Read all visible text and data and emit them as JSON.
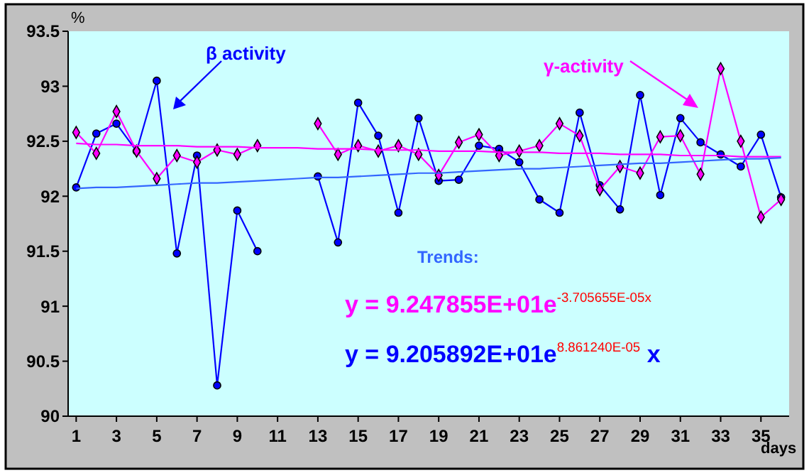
{
  "chart_data": {
    "type": "line",
    "xlabel": "days",
    "ylabel": "%",
    "xlim": [
      0.6,
      36.4
    ],
    "xticks": [
      1,
      3,
      5,
      7,
      9,
      11,
      13,
      15,
      17,
      19,
      21,
      23,
      25,
      27,
      29,
      31,
      33,
      35
    ],
    "ylim": [
      90,
      93.5
    ],
    "yticks": [
      90,
      90.5,
      91,
      91.5,
      92,
      92.5,
      93,
      93.5
    ],
    "x": [
      1,
      2,
      3,
      4,
      5,
      6,
      7,
      8,
      9,
      10,
      11,
      12,
      13,
      14,
      15,
      16,
      17,
      18,
      19,
      20,
      21,
      22,
      23,
      24,
      25,
      26,
      27,
      28,
      29,
      30,
      31,
      32,
      33,
      34,
      35,
      36
    ],
    "grid": false,
    "series": [
      {
        "color": "#0000ff",
        "marker": "circle",
        "values": [
          92.08,
          92.57,
          92.66,
          92.41,
          93.05,
          91.48,
          92.37,
          90.28,
          91.87,
          91.5,
          null,
          null,
          92.18,
          91.58,
          92.85,
          92.55,
          91.85,
          92.71,
          92.14,
          92.15,
          92.46,
          92.43,
          92.31,
          91.97,
          91.85,
          92.76,
          92.1,
          91.88,
          92.92,
          92.01,
          92.71,
          92.49,
          92.38,
          92.27,
          92.56,
          91.99
        ]
      },
      {
        "color": "#ff00ff",
        "marker": "diamond",
        "values": [
          92.58,
          92.39,
          92.77,
          92.41,
          92.16,
          92.37,
          92.31,
          92.42,
          92.38,
          92.46,
          null,
          null,
          92.66,
          92.38,
          92.46,
          92.41,
          92.46,
          92.38,
          92.19,
          92.49,
          92.56,
          92.37,
          92.41,
          92.46,
          92.66,
          92.55,
          92.06,
          92.27,
          92.21,
          92.54,
          92.55,
          92.2,
          93.16,
          92.5,
          91.81,
          91.97
        ]
      },
      {
        "color": "#ff00ff",
        "marker": "none",
        "values": [
          92.48,
          92.47,
          92.47,
          92.46,
          92.46,
          92.46,
          92.45,
          92.45,
          92.45,
          92.44,
          92.44,
          92.44,
          92.43,
          92.43,
          92.43,
          92.42,
          92.42,
          92.42,
          92.41,
          92.41,
          92.41,
          92.4,
          92.4,
          92.4,
          92.39,
          92.39,
          92.39,
          92.38,
          92.38,
          92.38,
          92.37,
          92.37,
          92.37,
          92.36,
          92.36,
          92.36
        ]
      },
      {
        "color": "#3366ff",
        "marker": "none",
        "values": [
          92.07,
          92.08,
          92.08,
          92.09,
          92.1,
          92.11,
          92.12,
          92.12,
          92.13,
          92.14,
          92.15,
          92.16,
          92.17,
          92.17,
          92.18,
          92.19,
          92.2,
          92.21,
          92.21,
          92.22,
          92.23,
          92.24,
          92.25,
          92.25,
          92.26,
          92.27,
          92.28,
          92.29,
          92.3,
          92.3,
          92.31,
          92.32,
          92.33,
          92.34,
          92.34,
          92.35
        ]
      }
    ],
    "annotations": [
      "β activity",
      "γ-activity",
      "Trends:",
      "y = 9.247855E+01e$^{-3.705655E-05x}$",
      "y = 9.205892E+01e$^{8.861240E-05}$ x"
    ]
  }
}
